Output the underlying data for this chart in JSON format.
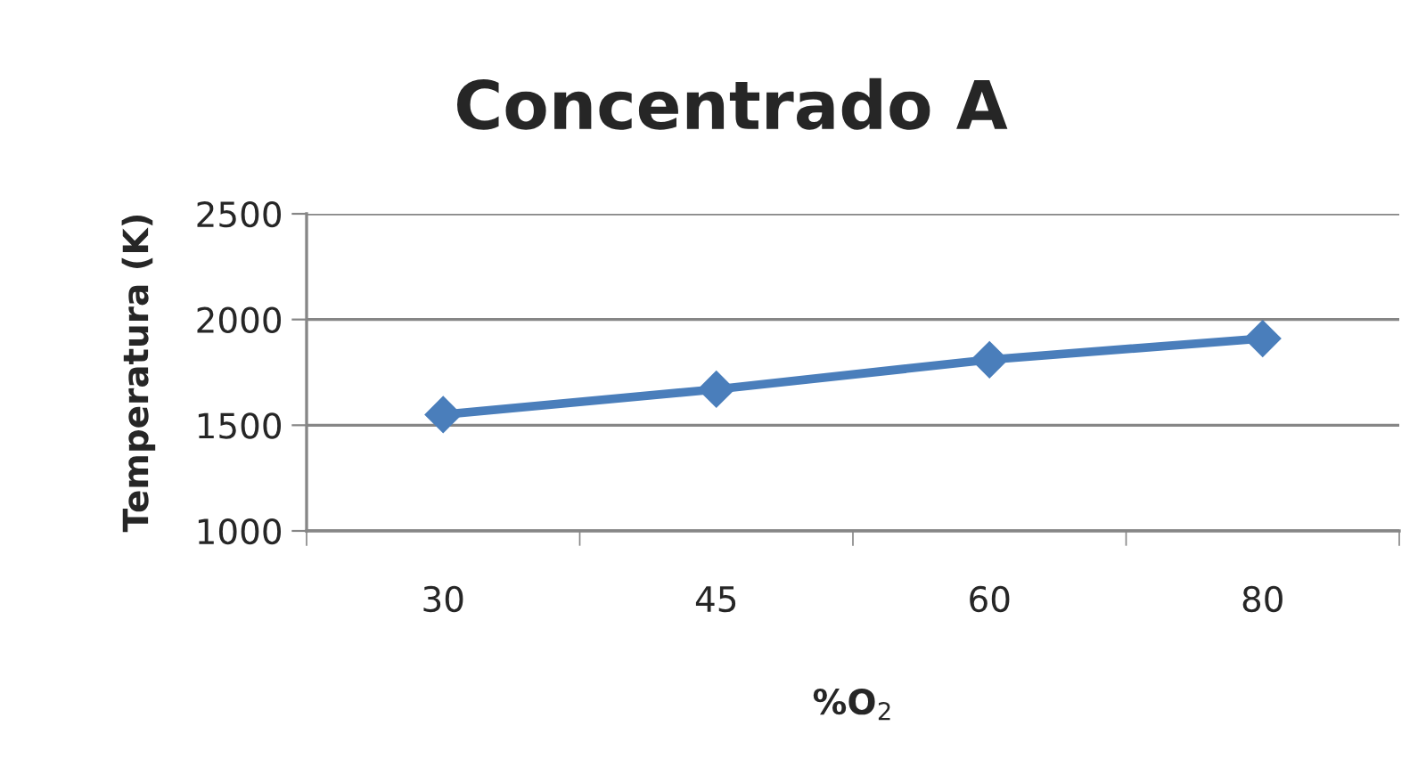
{
  "chart_data": {
    "type": "line",
    "title": "Concentrado A",
    "xlabel": "%O$_{2}$",
    "ylabel": "Temperatura (K)",
    "categories": [
      "30",
      "45",
      "60",
      "80"
    ],
    "series": [
      {
        "color": "#4a7ebb",
        "values": [
          1550,
          1670,
          1810,
          1910
        ]
      }
    ],
    "ylim": [
      1000,
      2500
    ],
    "yticks": [
      1000,
      1500,
      2000,
      2500
    ],
    "grid": "y",
    "marker": "diamond",
    "line_style": "solid"
  }
}
